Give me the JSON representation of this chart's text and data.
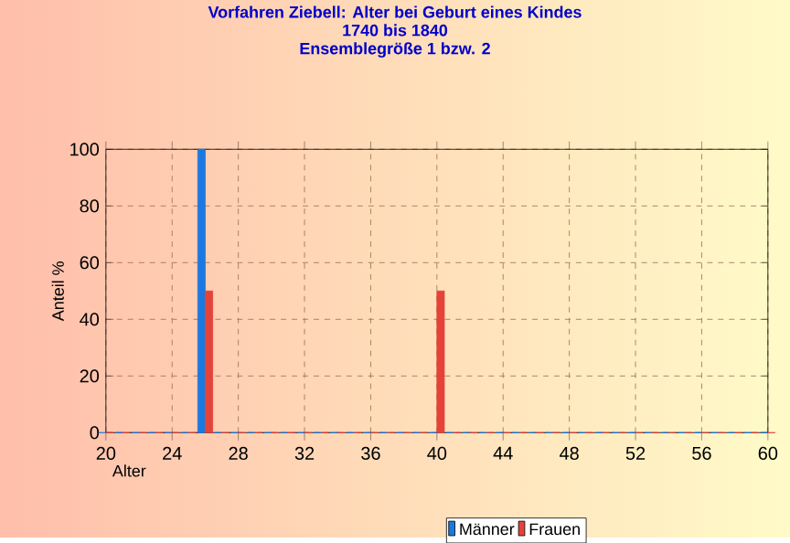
{
  "chart_data": {
    "type": "bar",
    "title": "Vorfahren Ziebell: Alter bei Geburt eines Kindes",
    "subtitle": "1740 bis 1840\nEnsemblegröße 1 bzw. 2",
    "xlabel": "Alter",
    "ylabel": "Anteil %",
    "x": [
      20,
      21,
      22,
      23,
      24,
      25,
      26,
      27,
      28,
      29,
      30,
      31,
      32,
      33,
      34,
      35,
      36,
      37,
      38,
      39,
      40,
      41,
      42,
      43,
      44,
      45,
      46,
      47,
      48,
      49,
      50,
      51,
      52,
      53,
      54,
      55,
      56,
      57,
      58,
      59,
      60
    ],
    "series": [
      {
        "name": "Männer",
        "color": "#1c78e0",
        "values": [
          0,
          0,
          0,
          0,
          0,
          0,
          100,
          0,
          0,
          0,
          0,
          0,
          0,
          0,
          0,
          0,
          0,
          0,
          0,
          0,
          0,
          0,
          0,
          0,
          0,
          0,
          0,
          0,
          0,
          0,
          0,
          0,
          0,
          0,
          0,
          0,
          0,
          0,
          0,
          0,
          0
        ]
      },
      {
        "name": "Frauen",
        "color": "#e5433a",
        "values": [
          0,
          0,
          0,
          0,
          0,
          0,
          50,
          0,
          0,
          0,
          0,
          0,
          0,
          0,
          0,
          0,
          0,
          0,
          0,
          0,
          50,
          0,
          0,
          0,
          0,
          0,
          0,
          0,
          0,
          0,
          0,
          0,
          0,
          0,
          0,
          0,
          0,
          0,
          0,
          0,
          0
        ]
      }
    ],
    "xlim": [
      20,
      60
    ],
    "xticks": [
      20,
      24,
      28,
      32,
      36,
      40,
      44,
      48,
      52,
      56,
      60
    ],
    "ylim": [
      0,
      100
    ],
    "yticks": [
      0,
      20,
      40,
      60,
      80,
      100
    ],
    "grid": true,
    "legend": "bottom"
  }
}
